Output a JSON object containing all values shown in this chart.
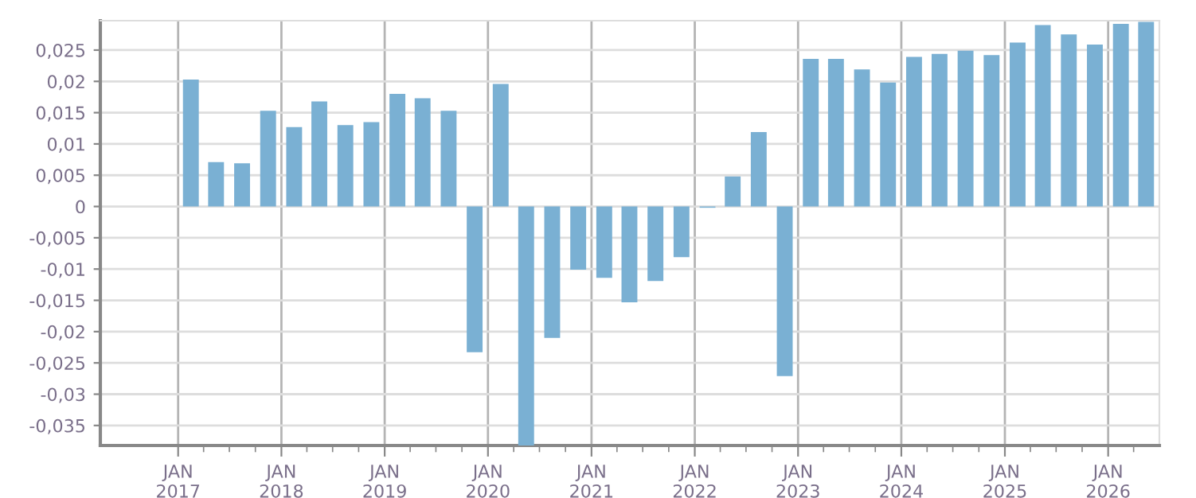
{
  "chart_data": {
    "type": "bar",
    "x": [
      "2017-02-15",
      "2017-05-15",
      "2017-08-15",
      "2017-11-15",
      "2018-02-15",
      "2018-05-15",
      "2018-08-15",
      "2018-11-15",
      "2019-02-15",
      "2019-05-15",
      "2019-08-15",
      "2019-11-15",
      "2020-02-15",
      "2020-05-15",
      "2020-08-15",
      "2020-11-15",
      "2021-02-15",
      "2021-05-15",
      "2021-08-15",
      "2021-11-15",
      "2022-02-15",
      "2022-05-15",
      "2022-08-15",
      "2022-11-15",
      "2023-02-15",
      "2023-05-15",
      "2023-08-15",
      "2023-11-15",
      "2024-02-15",
      "2024-05-15",
      "2024-08-15",
      "2024-11-15",
      "2025-02-15",
      "2025-05-15",
      "2025-08-15",
      "2025-11-15",
      "2026-02-15",
      "2026-05-15"
    ],
    "series": [
      {
        "color": "#7ab0d3",
        "values": [
          0.0203,
          0.0071,
          0.0069,
          0.0153,
          0.0127,
          0.0168,
          0.013,
          0.0135,
          0.018,
          0.0173,
          0.0153,
          -0.0233,
          0.0196,
          -0.0382,
          -0.021,
          -0.0101,
          -0.0114,
          -0.0153,
          -0.0119,
          -0.0081,
          -0.0002,
          0.0048,
          0.0119,
          -0.0271,
          0.0236,
          0.0236,
          0.0219,
          0.0198,
          0.0239,
          0.0244,
          0.0249,
          0.0242,
          0.0262,
          0.029,
          0.0275,
          0.0259,
          0.0292,
          0.0295
        ]
      }
    ],
    "xlim": [
      "2016-04-01",
      "2026-07-01"
    ],
    "xticks": [
      {
        "value": "2017-01-01",
        "label": "JAN\n2017"
      },
      {
        "value": "2017-04-01",
        "label": null
      },
      {
        "value": "2017-07-01",
        "label": null
      },
      {
        "value": "2017-10-01",
        "label": null
      },
      {
        "value": "2018-01-01",
        "label": "JAN\n2018"
      },
      {
        "value": "2018-04-01",
        "label": null
      },
      {
        "value": "2018-07-01",
        "label": null
      },
      {
        "value": "2018-10-01",
        "label": null
      },
      {
        "value": "2019-01-01",
        "label": "JAN\n2019"
      },
      {
        "value": "2019-04-01",
        "label": null
      },
      {
        "value": "2019-07-01",
        "label": null
      },
      {
        "value": "2019-10-01",
        "label": null
      },
      {
        "value": "2020-01-01",
        "label": "JAN\n2020"
      },
      {
        "value": "2020-04-01",
        "label": null
      },
      {
        "value": "2020-07-01",
        "label": null
      },
      {
        "value": "2020-10-01",
        "label": null
      },
      {
        "value": "2021-01-01",
        "label": "JAN\n2021"
      },
      {
        "value": "2021-04-01",
        "label": null
      },
      {
        "value": "2021-07-01",
        "label": null
      },
      {
        "value": "2021-10-01",
        "label": null
      },
      {
        "value": "2022-01-01",
        "label": "JAN\n2022"
      },
      {
        "value": "2022-04-01",
        "label": null
      },
      {
        "value": "2022-07-01",
        "label": null
      },
      {
        "value": "2022-10-01",
        "label": null
      },
      {
        "value": "2023-01-01",
        "label": "JAN\n2023"
      },
      {
        "value": "2023-04-01",
        "label": null
      },
      {
        "value": "2023-07-01",
        "label": null
      },
      {
        "value": "2023-10-01",
        "label": null
      },
      {
        "value": "2024-01-01",
        "label": "JAN\n2024"
      },
      {
        "value": "2024-04-01",
        "label": null
      },
      {
        "value": "2024-07-01",
        "label": null
      },
      {
        "value": "2024-10-01",
        "label": null
      },
      {
        "value": "2025-01-01",
        "label": "JAN\n2025"
      },
      {
        "value": "2025-04-01",
        "label": null
      },
      {
        "value": "2025-07-01",
        "label": null
      },
      {
        "value": "2025-10-01",
        "label": null
      },
      {
        "value": "2026-01-01",
        "label": "JAN\n2026"
      },
      {
        "value": "2026-04-01",
        "label": null
      }
    ],
    "ylim": [
      -0.0382,
      0.0297
    ],
    "yticks": [
      {
        "value": -0.035,
        "label": "-0,035"
      },
      {
        "value": -0.03,
        "label": "-0,03"
      },
      {
        "value": -0.025,
        "label": "-0,025"
      },
      {
        "value": -0.02,
        "label": "-0,02"
      },
      {
        "value": -0.015,
        "label": "-0,015"
      },
      {
        "value": -0.01,
        "label": "-0,01"
      },
      {
        "value": -0.005,
        "label": "-0,005"
      },
      {
        "value": 0,
        "label": "0"
      },
      {
        "value": 0.005,
        "label": "0,005"
      },
      {
        "value": 0.01,
        "label": "0,01"
      },
      {
        "value": 0.015,
        "label": "0,015"
      },
      {
        "value": 0.02,
        "label": "0,02"
      },
      {
        "value": 0.025,
        "label": "0,025"
      }
    ],
    "grid": true
  }
}
